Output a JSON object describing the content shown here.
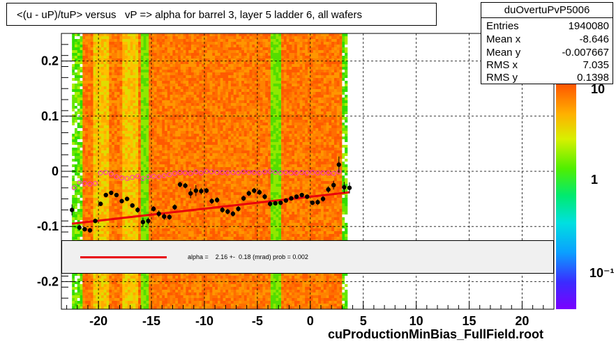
{
  "window": {
    "title": "<(u - uP)/tuP> versus   vP => alpha for barrel 3, layer 5 ladder 6, all wafers",
    "footer": "cuProductionMinBias_FullField.root"
  },
  "stats": {
    "name": "duOvertuPvP5006",
    "rows": [
      {
        "key": "Entries",
        "value": "1940080"
      },
      {
        "key": "Mean x",
        "value": "-8.646"
      },
      {
        "key": "Mean y",
        "value": "-0.007667"
      },
      {
        "key": "RMS x",
        "value": "7.035"
      },
      {
        "key": "RMS y",
        "value": "0.1398"
      }
    ]
  },
  "fit": {
    "label": "alpha =    2.16 +-  0.18 (mrad) prob = 0.002",
    "color": "#e8000b"
  },
  "colorbar": {
    "labels": [
      "10",
      "1",
      "10⁻¹"
    ]
  },
  "colors": {
    "data_points": "#000000",
    "profile_points": "#ff33cc",
    "fit_line": "#e8000b",
    "grid": "#000000"
  },
  "chart_data": {
    "type": "heatmap",
    "title": "<(u - uP)/tuP> versus   vP => alpha for barrel 3, layer 5 ladder 6, all wafers",
    "xlabel": "",
    "ylabel": "",
    "xlim": [
      -23.5,
      23
    ],
    "ylim": [
      -0.25,
      0.25
    ],
    "x_ticks": [
      -20,
      -15,
      -10,
      -5,
      0,
      5,
      10,
      15,
      20
    ],
    "x_tick_labels": [
      "-20",
      "-15",
      "-10",
      "-5",
      "0",
      "5",
      "10",
      "15",
      "20"
    ],
    "y_ticks": [
      -0.2,
      -0.1,
      0,
      0.1,
      0.2
    ],
    "y_tick_labels": [
      "-0.2",
      "-0.1",
      "0",
      "0.1",
      "0.2"
    ],
    "grid": true,
    "z_scale": "log",
    "heatmap_x_range": [
      -22.5,
      3.5
    ],
    "series": [
      {
        "kind": "profile_mean_black",
        "x": [
          -22.5,
          -21.8,
          -21.3,
          -20.8,
          -20.3,
          -19.8,
          -19.3,
          -18.8,
          -18.3,
          -17.8,
          -17.3,
          -16.8,
          -16.3,
          -15.8,
          -15.3,
          -14.8,
          -14.3,
          -13.8,
          -13.3,
          -12.8,
          -12.3,
          -11.8,
          -11.3,
          -10.8,
          -10.3,
          -9.8,
          -9.3,
          -8.8,
          -8.3,
          -7.8,
          -7.3,
          -6.8,
          -6.3,
          -5.8,
          -5.3,
          -4.8,
          -4.3,
          -3.8,
          -3.3,
          -2.8,
          -2.3,
          -1.8,
          -1.3,
          -0.8,
          -0.3,
          0.2,
          0.7,
          1.2,
          1.7,
          2.2,
          2.7,
          3.2,
          3.7
        ],
        "y": [
          -0.07,
          -0.102,
          -0.105,
          -0.107,
          -0.09,
          -0.059,
          -0.043,
          -0.039,
          -0.043,
          -0.054,
          -0.05,
          -0.062,
          -0.07,
          -0.092,
          -0.09,
          -0.068,
          -0.077,
          -0.082,
          -0.083,
          -0.065,
          -0.024,
          -0.026,
          -0.04,
          -0.035,
          -0.036,
          -0.035,
          -0.054,
          -0.052,
          -0.07,
          -0.073,
          -0.077,
          -0.068,
          -0.049,
          -0.04,
          -0.035,
          -0.038,
          -0.046,
          -0.059,
          -0.058,
          -0.057,
          -0.053,
          -0.049,
          -0.046,
          -0.043,
          -0.046,
          -0.057,
          -0.056,
          -0.05,
          -0.033,
          -0.025,
          0.012,
          -0.029,
          -0.03
        ],
        "errors": [
          0.01,
          0.005,
          0.004,
          0.004,
          0.004,
          0.004,
          0.004,
          0.004,
          0.004,
          0.004,
          0.004,
          0.004,
          0.005,
          0.008,
          0.006,
          0.005,
          0.006,
          0.006,
          0.005,
          0.005,
          0.005,
          0.005,
          0.009,
          0.01,
          0.006,
          0.005,
          0.005,
          0.005,
          0.005,
          0.005,
          0.005,
          0.005,
          0.005,
          0.005,
          0.005,
          0.005,
          0.005,
          0.005,
          0.004,
          0.004,
          0.004,
          0.004,
          0.004,
          0.004,
          0.004,
          0.004,
          0.005,
          0.005,
          0.006,
          0.008,
          0.015,
          0.01,
          0.01
        ]
      },
      {
        "kind": "profile_mean_magenta",
        "x": [
          -22.3,
          -21.8,
          -21.3,
          -20.8,
          -20.3,
          -19.8,
          -19.3,
          -18.8,
          -18.3,
          -17.8,
          -17.3,
          -16.8,
          -16.3,
          -15.8,
          -15.3,
          -14.8,
          -14.3,
          -13.8,
          -13.3,
          -12.8,
          -12.3,
          -11.8,
          -11.3,
          -10.8,
          -10.3,
          -9.8,
          -9.3,
          -8.8,
          -8.3,
          -7.8,
          -7.3,
          -6.8,
          -6.3,
          -5.8,
          -5.3,
          -4.8,
          -4.3,
          -3.8,
          -3.3,
          -2.8,
          -2.3,
          -1.8,
          -1.3,
          -0.8,
          -0.3,
          0.2,
          0.7,
          1.2,
          1.7,
          2.2,
          2.7
        ],
        "y": [
          -0.03,
          -0.02,
          -0.022,
          -0.023,
          -0.022,
          -0.003,
          -0.002,
          -0.005,
          -0.01,
          -0.012,
          -0.013,
          -0.011,
          -0.009,
          -0.013,
          -0.01,
          -0.009,
          -0.01,
          -0.008,
          -0.006,
          -0.004,
          -0.002,
          -0.003,
          -0.004,
          -0.001,
          -0.003,
          0.0,
          -0.001,
          -0.002,
          -0.002,
          -0.003,
          -0.002,
          -0.003,
          -0.001,
          -0.002,
          -0.002,
          -0.003,
          -0.001,
          0.0,
          -0.002,
          -0.003,
          -0.002,
          -0.003,
          -0.003,
          -0.002,
          -0.003,
          -0.002,
          -0.003,
          -0.003,
          -0.003,
          -0.004,
          -0.001
        ]
      },
      {
        "kind": "fit_line",
        "x": [
          -22.5,
          3.7
        ],
        "y": [
          -0.095,
          -0.038
        ]
      }
    ]
  }
}
